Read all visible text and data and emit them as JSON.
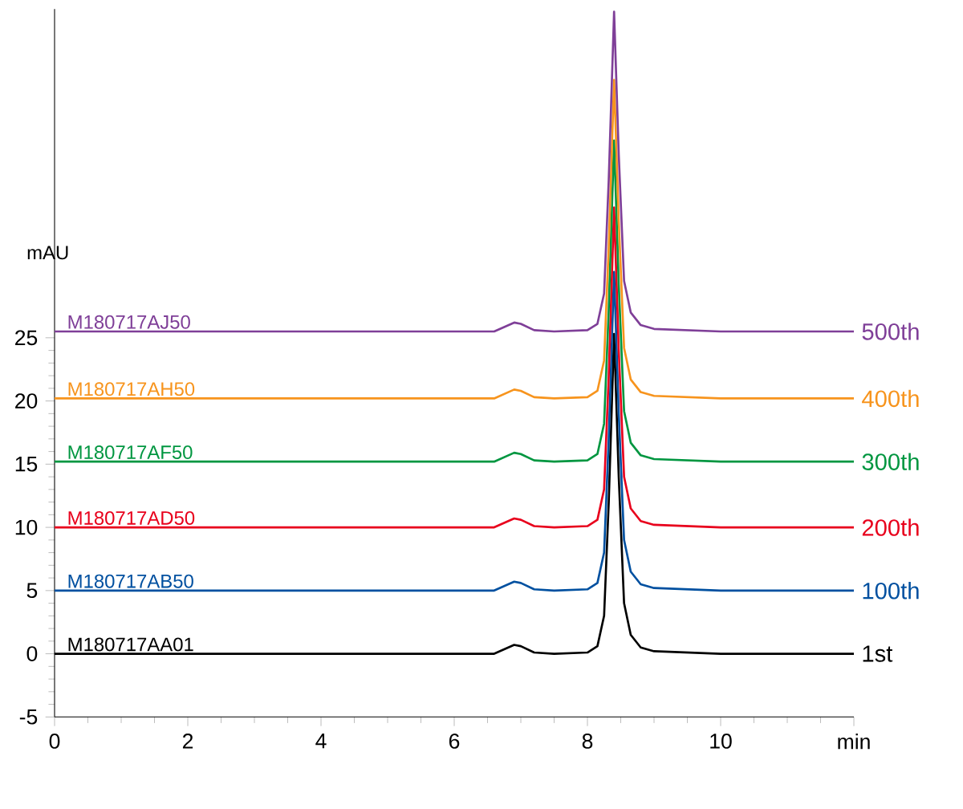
{
  "chart_data": {
    "type": "line",
    "ylabel": "mAU",
    "x": [
      0,
      6.6,
      6.9,
      7.0,
      7.2,
      7.5,
      8.0,
      8.15,
      8.25,
      8.32,
      8.4,
      8.47,
      8.55,
      8.65,
      8.8,
      9.0,
      10,
      11,
      12
    ],
    "series": [
      {
        "name": "M180717AA01",
        "color": "#000000",
        "values": [
          0,
          0,
          0.7,
          0.6,
          0.1,
          0,
          0.1,
          0.6,
          3,
          12,
          25.3,
          14,
          4,
          1.5,
          0.5,
          0.2,
          0,
          0,
          0
        ]
      },
      {
        "name": "M180717AB50",
        "color": "#0050a0",
        "values": [
          5,
          5,
          5.7,
          5.6,
          5.1,
          5,
          5.1,
          5.6,
          8,
          17,
          30.2,
          19,
          9,
          6.5,
          5.5,
          5.2,
          5,
          5,
          5
        ]
      },
      {
        "name": "M180717AD50",
        "color": "#e8001c",
        "values": [
          10,
          10,
          10.7,
          10.6,
          10.1,
          10,
          10.1,
          10.6,
          13,
          22,
          35.3,
          24,
          14,
          11.5,
          10.5,
          10.2,
          10,
          10,
          10
        ]
      },
      {
        "name": "M180717AF50",
        "color": "#009640",
        "values": [
          15.2,
          15.2,
          15.9,
          15.8,
          15.3,
          15.2,
          15.3,
          15.8,
          18.2,
          27.2,
          40.6,
          29.2,
          19.2,
          16.7,
          15.7,
          15.4,
          15.2,
          15.2,
          15.2
        ]
      },
      {
        "name": "M180717AH50",
        "color": "#f7941d",
        "values": [
          20.2,
          20.2,
          20.9,
          20.8,
          20.3,
          20.2,
          20.3,
          20.8,
          23.2,
          32.2,
          45.4,
          34.2,
          24.2,
          21.7,
          20.7,
          20.4,
          20.2,
          20.2,
          20.2
        ]
      },
      {
        "name": "M180717AJ50",
        "color": "#7f3f98",
        "values": [
          25.5,
          25.5,
          26.2,
          26.1,
          25.6,
          25.5,
          25.6,
          26.1,
          28.5,
          37.5,
          50.8,
          39.5,
          29.5,
          27,
          26,
          25.7,
          25.5,
          25.5,
          25.5
        ]
      }
    ],
    "annotations": [
      "1st",
      "100th",
      "200th",
      "300th",
      "400th",
      "500th"
    ],
    "xlim": [
      0,
      12
    ],
    "ylim": [
      -5,
      51
    ],
    "xticks": [
      0,
      2,
      4,
      6,
      8,
      10,
      {
        "value": 12,
        "label": "min"
      }
    ],
    "yticks": [
      -5,
      0,
      5,
      10,
      15,
      20,
      25
    ],
    "marker": "none",
    "line_style": "solid"
  }
}
